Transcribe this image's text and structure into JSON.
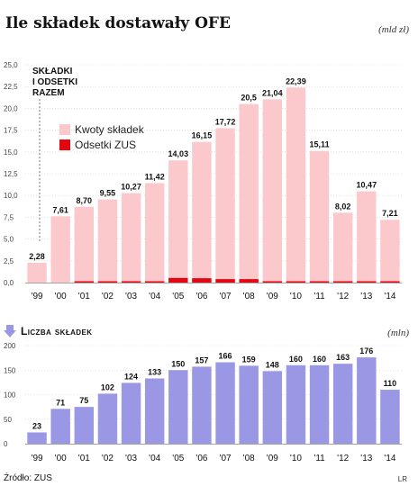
{
  "title": "Ile składek dostawały OFE",
  "unit_top": "(mld zł)",
  "section2_title": "Liczba składek",
  "unit_bottom": "(mln)",
  "source": "Źródło: ZUS",
  "credit": "LR",
  "colors": {
    "kwoty": "#fbc9cb",
    "odsetki": "#e30613",
    "liczba": "#9a97e4",
    "arrow": "#9a97e4"
  },
  "chart_data": [
    {
      "type": "bar",
      "stacked": true,
      "categories": [
        "'99",
        "'00",
        "'01",
        "'02",
        "'03",
        "'04",
        "'05",
        "'06",
        "'07",
        "'08",
        "'09",
        "'10",
        "'11",
        "'12",
        "'13",
        "'14"
      ],
      "totals": [
        2.28,
        7.61,
        8.7,
        9.55,
        10.27,
        11.42,
        14.03,
        16.15,
        17.72,
        20.5,
        21.04,
        22.39,
        15.11,
        8.02,
        10.47,
        7.21
      ],
      "total_labels": [
        "2,28",
        "7,61",
        "8,70",
        "9,55",
        "10,27",
        "11,42",
        "14,03",
        "16,15",
        "17,72",
        "20,5",
        "21,04",
        "22,39",
        "15,11",
        "8,02",
        "10,47",
        "7,21"
      ],
      "series": [
        {
          "name": "Kwoty składek",
          "values": [
            2.28,
            7.61,
            8.65,
            9.5,
            10.2,
            11.34,
            13.5,
            15.65,
            17.32,
            20.1,
            20.94,
            22.34,
            15.06,
            8.0,
            10.45,
            7.2
          ]
        },
        {
          "name": "Odsetki ZUS",
          "values": [
            0.0,
            0.0,
            0.05,
            0.05,
            0.07,
            0.08,
            0.53,
            0.5,
            0.4,
            0.4,
            0.1,
            0.05,
            0.05,
            0.02,
            0.02,
            0.01
          ]
        }
      ],
      "razem_label": [
        "SKŁADKI",
        "I ODSETKI",
        "RAZEM"
      ],
      "yticks": [
        "0,0",
        "2,5",
        "5,0",
        "7,5",
        "10,0",
        "12,5",
        "15,0",
        "17,5",
        "20,0",
        "22,5",
        "25,0"
      ],
      "ylim": [
        0,
        25
      ],
      "legend_position": "upper-left"
    },
    {
      "type": "bar",
      "categories": [
        "'99",
        "'00",
        "'01",
        "'02",
        "'03",
        "'04",
        "'05",
        "'06",
        "'07",
        "'08",
        "'09",
        "'10",
        "'11",
        "'12",
        "'13",
        "'14"
      ],
      "series": [
        {
          "values": [
            23,
            71,
            75,
            102,
            124,
            133,
            150,
            157,
            166,
            159,
            148,
            160,
            160,
            163,
            176,
            110
          ]
        }
      ],
      "yticks": [
        "0",
        "50",
        "100",
        "150",
        "200"
      ],
      "ylim": [
        0,
        200
      ]
    }
  ]
}
